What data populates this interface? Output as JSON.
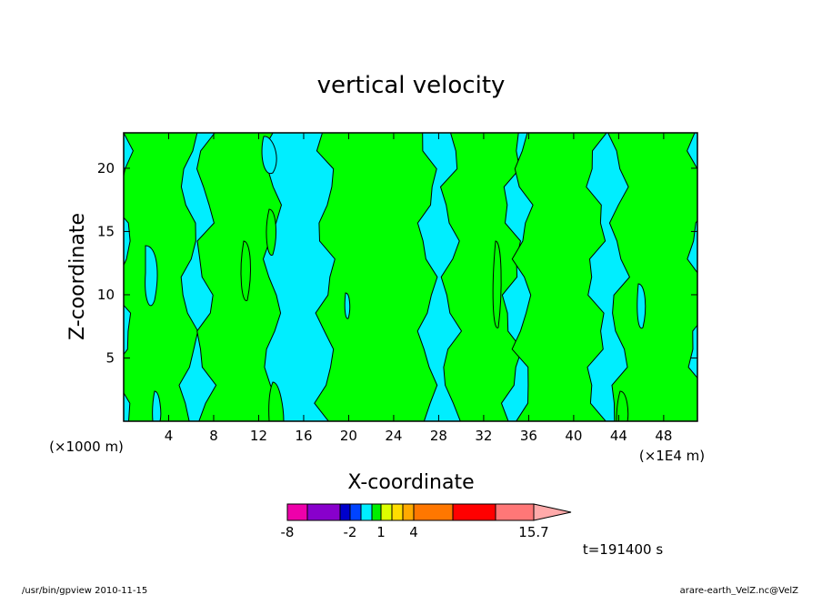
{
  "chart_data": {
    "type": "contour",
    "title": "vertical velocity",
    "xlabel": "X-coordinate",
    "ylabel": "Z-coordinate",
    "x_unit_left": "(×1000 m)",
    "x_unit_right": "(×1E4 m)",
    "x_ticks": [
      4,
      8,
      12,
      16,
      20,
      24,
      28,
      32,
      36,
      40,
      44,
      48
    ],
    "x_tick_labels": [
      "4",
      "8",
      "12",
      "16",
      "20",
      "24",
      "28",
      "32",
      "36",
      "40",
      "44",
      "48"
    ],
    "y_ticks": [
      5,
      10,
      15,
      20
    ],
    "y_tick_labels": [
      "5",
      "10",
      "15",
      "20"
    ],
    "xlim": [
      0,
      51
    ],
    "ylim": [
      0,
      22.8
    ],
    "regions": [
      {
        "name": "positive",
        "color": "#00ff00",
        "x_ranges": [
          [
            0,
            5.8
          ],
          [
            7.2,
            13.2
          ],
          [
            18,
            27
          ],
          [
            29,
            34.5
          ],
          [
            35.5,
            42
          ],
          [
            44,
            51
          ]
        ]
      },
      {
        "name": "negative",
        "color": "#00eeff"
      }
    ],
    "colorbar": {
      "colors": [
        "#ee00aa",
        "#8800cc",
        "#0000cc",
        "#0044ff",
        "#00eeff",
        "#00ee00",
        "#ddff00",
        "#ffdd00",
        "#ffaa00",
        "#ff7700",
        "#ff0000",
        "#ff7777",
        "#ffaaaa"
      ],
      "tick_labels": [
        "-8",
        "-2",
        "1",
        "4",
        "15.7"
      ]
    },
    "time_label": "t=191400 s"
  },
  "footer": {
    "left": "/usr/bin/gpview  2010-11-15",
    "right": "arare-earth_VelZ.nc@VelZ"
  }
}
